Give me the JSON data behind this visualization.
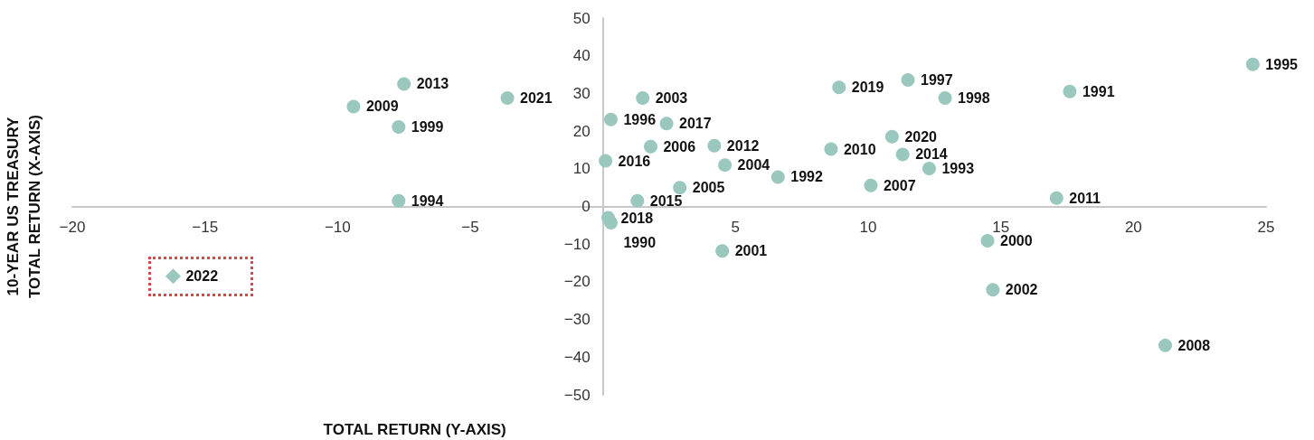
{
  "chart_data": {
    "type": "scatter",
    "xlabel": "TOTAL RETURN (Y-AXIS)",
    "ylabel": "10-YEAR US TREASURY\nTOTAL RETURN (X-AXIS)",
    "xlim": [
      -20,
      25
    ],
    "xticks": [
      -20,
      -15,
      -10,
      -5,
      5,
      10,
      15,
      20,
      25
    ],
    "ylim": [
      -50,
      50
    ],
    "yticks": [
      -50,
      -40,
      -30,
      -20,
      -10,
      0,
      10,
      20,
      30,
      40,
      50
    ],
    "grid": false,
    "marker": "circle",
    "series": [
      {
        "color": "#9ac8bf",
        "x": [
          -3.6,
          8.9,
          1.5,
          0.3,
          2.4,
          0.1,
          1.8,
          4.2,
          4.6,
          1.3,
          2.9,
          0.2,
          0.3,
          4.5,
          6.6,
          8.6,
          10.1,
          10.9,
          11.3,
          12.3,
          11.5,
          12.9,
          17.6,
          24.5,
          14.5,
          14.7,
          21.2,
          17.1,
          -7.5,
          -9.4,
          -7.7,
          -7.7
        ],
        "values": [
          28.8,
          31.6,
          28.8,
          23.1,
          22.0,
          12.1,
          15.9,
          16.1,
          11.0,
          1.5,
          5.0,
          -3.0,
          -4.3,
          -11.8,
          7.8,
          15.2,
          5.6,
          18.5,
          13.8,
          10.1,
          33.6,
          28.8,
          30.5,
          37.7,
          -9.1,
          -22.1,
          -36.9,
          2.2,
          32.5,
          26.5,
          21.1,
          1.5
        ]
      },
      {
        "color": "#9ac8bf",
        "marker": "diamond",
        "x": [
          -16.2
        ],
        "values": [
          -18.5
        ]
      }
    ],
    "annotations": [
      {
        "text": "2021",
        "x": -3.6,
        "y": 28.8
      },
      {
        "text": "2019",
        "x": 8.9,
        "y": 31.6
      },
      {
        "text": "2003",
        "x": 1.5,
        "y": 28.8
      },
      {
        "text": "1996",
        "x": 0.3,
        "y": 23.1
      },
      {
        "text": "2017",
        "x": 2.4,
        "y": 22.0
      },
      {
        "text": "2016",
        "x": 0.1,
        "y": 12.1
      },
      {
        "text": "2006",
        "x": 1.8,
        "y": 15.9
      },
      {
        "text": "2012",
        "x": 4.2,
        "y": 16.1
      },
      {
        "text": "2004",
        "x": 4.6,
        "y": 11.0
      },
      {
        "text": "2015",
        "x": 1.3,
        "y": 1.5
      },
      {
        "text": "2005",
        "x": 2.9,
        "y": 5.0
      },
      {
        "text": "2018",
        "x": 0.2,
        "y": -3.0
      },
      {
        "text": "1990",
        "x": 0.3,
        "y": -4.3
      },
      {
        "text": "2001",
        "x": 4.5,
        "y": -11.8
      },
      {
        "text": "1992",
        "x": 6.6,
        "y": 7.8
      },
      {
        "text": "2010",
        "x": 8.6,
        "y": 15.2
      },
      {
        "text": "2007",
        "x": 10.1,
        "y": 5.6
      },
      {
        "text": "2020",
        "x": 10.9,
        "y": 18.5
      },
      {
        "text": "2014",
        "x": 11.3,
        "y": 13.8
      },
      {
        "text": "1993",
        "x": 12.3,
        "y": 10.1
      },
      {
        "text": "1997",
        "x": 11.5,
        "y": 33.6
      },
      {
        "text": "1998",
        "x": 12.9,
        "y": 28.8
      },
      {
        "text": "1991",
        "x": 17.6,
        "y": 30.5
      },
      {
        "text": "1995",
        "x": 24.5,
        "y": 37.7
      },
      {
        "text": "2000",
        "x": 14.5,
        "y": -9.1
      },
      {
        "text": "2002",
        "x": 14.7,
        "y": -22.1
      },
      {
        "text": "2008",
        "x": 21.2,
        "y": -36.9
      },
      {
        "text": "2011",
        "x": 17.1,
        "y": 2.2
      },
      {
        "text": "2013",
        "x": -7.5,
        "y": 32.5
      },
      {
        "text": "2009",
        "x": -9.4,
        "y": 26.5
      },
      {
        "text": "1999",
        "x": -7.7,
        "y": 21.1
      },
      {
        "text": "1994",
        "x": -7.7,
        "y": 1.5
      },
      {
        "text": "2022",
        "x": -16.2,
        "y": -18.5
      }
    ]
  }
}
